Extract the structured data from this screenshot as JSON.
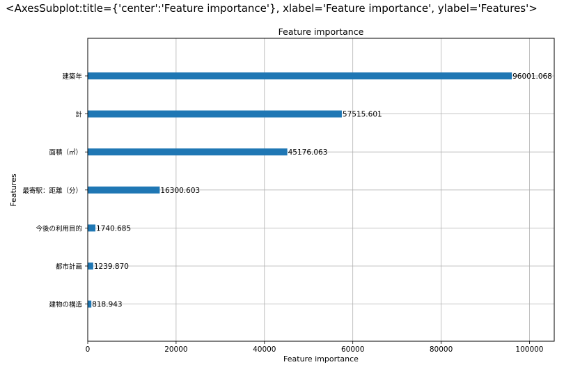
{
  "header": {
    "repr": "<AxesSubplot:title={'center':'Feature importance'}, xlabel='Feature importance', ylabel='Features'>"
  },
  "chart_data": {
    "type": "bar",
    "orientation": "horizontal",
    "title": "Feature importance",
    "xlabel": "Feature importance",
    "ylabel": "Features",
    "categories": [
      "建築年",
      "計",
      "面積（㎡）",
      "最寄駅：距離（分）",
      "今後の利用目的",
      "都市計画",
      "建物の構造"
    ],
    "values": [
      96001.068,
      57515.601,
      45176.063,
      16300.603,
      1740.685,
      1239.87,
      818.943
    ],
    "value_labels": [
      "96001.068",
      "57515.601",
      "45176.063",
      "16300.603",
      "1740.685",
      "1239.870",
      "818.943"
    ],
    "xticks": [
      0,
      20000,
      40000,
      60000,
      80000,
      100000
    ],
    "xtick_labels": [
      "0",
      "20000",
      "40000",
      "60000",
      "80000",
      "100000"
    ],
    "xlim": [
      0,
      105601
    ],
    "grid": true,
    "bar_color": "#1f77b4"
  }
}
